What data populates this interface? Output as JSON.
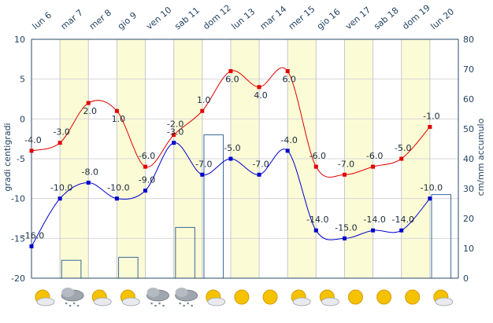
{
  "chart_data": {
    "type": "line",
    "categories": [
      "lun 6",
      "mar 7",
      "mer 8",
      "gio 9",
      "ven 10",
      "sab 11",
      "dom 12",
      "lun 13",
      "mar 14",
      "mer 15",
      "gio 16",
      "ven 17",
      "sab 18",
      "dom 19",
      "lun 20"
    ],
    "highlight_days": [
      1,
      3,
      5,
      7,
      9,
      11,
      13
    ],
    "y_left": {
      "label": "gradi centigradi",
      "ylim": [
        -20,
        10
      ],
      "ticks": [
        10,
        5,
        0,
        -5,
        -10,
        -15,
        -20
      ]
    },
    "y_right": {
      "label": "cm/mm accumulo",
      "ylim": [
        0,
        80
      ],
      "ticks": [
        80,
        70,
        60,
        50,
        40,
        30,
        20,
        10,
        0
      ]
    },
    "series": [
      {
        "axis": "left",
        "type": "line",
        "color": "#e00000",
        "values": [
          -4,
          -3,
          2,
          1,
          -6,
          -2,
          1,
          6,
          4,
          6,
          -6,
          -7,
          -6,
          -5,
          -1
        ],
        "labels": [
          "-4.0",
          "-3.0",
          "2.0",
          "1.0",
          "-6.0",
          "-2.0",
          "1.0",
          "6.0",
          "4.0",
          "6.0",
          "-6.0",
          "-7.0",
          "-6.0",
          "-5.0",
          "-1.0"
        ]
      },
      {
        "axis": "left",
        "type": "line",
        "color": "#0000cc",
        "values": [
          -16,
          -10,
          -8,
          -10,
          -9,
          -3,
          -7,
          -5,
          -7,
          -4,
          -14,
          -15,
          -14,
          -14,
          -10
        ],
        "labels": [
          "-16.0",
          "-10.0",
          "-8.0",
          "-10.0",
          "-9.0",
          "-3.0",
          "-7.0",
          "-5.0",
          "-7.0",
          "-4.0",
          "-14.0",
          "-15.0",
          "-14.0",
          "-14.0",
          "-10.0"
        ]
      },
      {
        "axis": "right",
        "type": "bar",
        "color": "#3a6a9a",
        "values": [
          0,
          6,
          0,
          7,
          0,
          17,
          48,
          0,
          0,
          0,
          0,
          0,
          0,
          0,
          28
        ]
      }
    ],
    "weather_icons": [
      "sun-cloud",
      "cloud-snow",
      "sun-cloud",
      "sun-cloud",
      "cloud-snow",
      "cloud-snow",
      "sun-cloud",
      "sun",
      "sun",
      "sun-cloud",
      "sun-cloud",
      "sun",
      "sun",
      "sun",
      "sun-cloud"
    ],
    "grid": true,
    "legend": "none"
  }
}
